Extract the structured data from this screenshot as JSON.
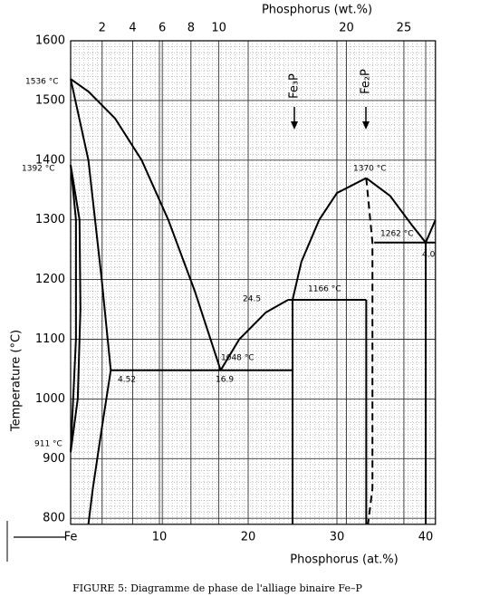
{
  "chart_data": {
    "type": "line",
    "x2_label": "Phosphorus (wt.%)",
    "x_label": "Phosphorus (at.%)",
    "y_label": "Temperature (°C)",
    "caption": "FIGURE 5: Diagramme de phase de l'alliage binaire Fe–P",
    "xlim": [
      0,
      41.1
    ],
    "ylim": [
      790,
      1600
    ],
    "xticks": [
      {
        "value": 0,
        "label": "Fe"
      },
      10,
      20,
      30,
      40
    ],
    "yticks": [
      800,
      900,
      1000,
      1100,
      1200,
      1300,
      1400,
      1500,
      1600
    ],
    "x2ticks": [
      2,
      4,
      6,
      8,
      10,
      20,
      25
    ],
    "grid": true,
    "minor_grid": true,
    "color": "#000000",
    "series": [
      {
        "x": [
          0,
          2,
          5,
          8,
          11,
          14,
          16.9
        ],
        "values": [
          1536,
          1515,
          1470,
          1400,
          1300,
          1180,
          1048
        ]
      },
      {
        "x": [
          16.9,
          19,
          22,
          24.5
        ],
        "values": [
          1048,
          1100,
          1145,
          1166
        ]
      },
      {
        "x": [
          25,
          26,
          28,
          30,
          33.3
        ],
        "values": [
          1166,
          1230,
          1300,
          1345,
          1370
        ]
      },
      {
        "x": [
          33.3,
          36,
          38.5,
          40,
          41.1
        ],
        "values": [
          1370,
          1340,
          1290,
          1262,
          1300
        ]
      },
      {
        "x": [
          4.52,
          25
        ],
        "values": [
          1048,
          1048
        ]
      },
      {
        "x": [
          24.5,
          33.3
        ],
        "values": [
          1166,
          1166
        ]
      },
      {
        "x": [
          34.2,
          41.1
        ],
        "values": [
          1262,
          1262
        ]
      },
      {
        "x": [
          25,
          25
        ],
        "values": [
          1166,
          790
        ]
      },
      {
        "x": [
          33.3,
          33.3
        ],
        "values": [
          1166,
          790
        ]
      },
      {
        "x": [
          40,
          40
        ],
        "values": [
          1262,
          790
        ]
      },
      {
        "x": [
          33.3,
          34,
          34,
          33.5
        ],
        "values": [
          1370,
          1262,
          850,
          790
        ],
        "dashed": true
      },
      {
        "x": [
          0,
          2,
          3.5,
          4.52
        ],
        "values": [
          1536,
          1400,
          1200,
          1048
        ]
      },
      {
        "x": [
          4.52,
          3.5,
          2.5,
          2
        ],
        "values": [
          1048,
          950,
          850,
          790
        ]
      },
      {
        "x": [
          0,
          1,
          1.1,
          0.8,
          0
        ],
        "values": [
          1392,
          1300,
          1150,
          1000,
          911
        ]
      },
      {
        "x": [
          0,
          0.6,
          0.6,
          0
        ],
        "values": [
          1392,
          1300,
          1100,
          911
        ]
      }
    ],
    "annotations": [
      "1536 °C",
      "1392 °C",
      "911 °C",
      "1370 °C",
      "1262 °C",
      "1166 °C",
      "1048 °C",
      "24.5",
      "16.9",
      "4.52",
      "4.0",
      "Fe₃P",
      "Fe₂P"
    ]
  }
}
